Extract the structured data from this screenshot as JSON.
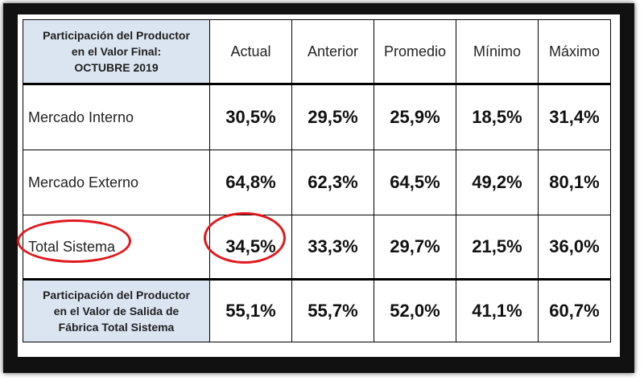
{
  "header": {
    "corner_line1": "Participación del Productor",
    "corner_line2": "en el Valor Final:",
    "corner_line3": "OCTUBRE 2019",
    "columns": [
      "Actual",
      "Anterior",
      "Promedio",
      "Mínimo",
      "Máximo"
    ]
  },
  "rows": [
    {
      "label": "Mercado Interno",
      "values": [
        "30,5%",
        "29,5%",
        "25,9%",
        "18,5%",
        "31,4%"
      ]
    },
    {
      "label": "Mercado Externo",
      "values": [
        "64,8%",
        "62,3%",
        "64,5%",
        "49,2%",
        "80,1%"
      ]
    },
    {
      "label": "Total Sistema",
      "values": [
        "34,5%",
        "33,3%",
        "29,7%",
        "21,5%",
        "36,0%"
      ]
    }
  ],
  "factory_row": {
    "label_line1": "Participación del Productor",
    "label_line2": "en el Valor de Salida de",
    "label_line3": "Fábrica Total Sistema",
    "values": [
      "55,1%",
      "55,7%",
      "52,0%",
      "41,1%",
      "60,7%"
    ]
  },
  "colors": {
    "header_fill": "#dbe5f1",
    "highlight_circle": "#e0191e"
  }
}
